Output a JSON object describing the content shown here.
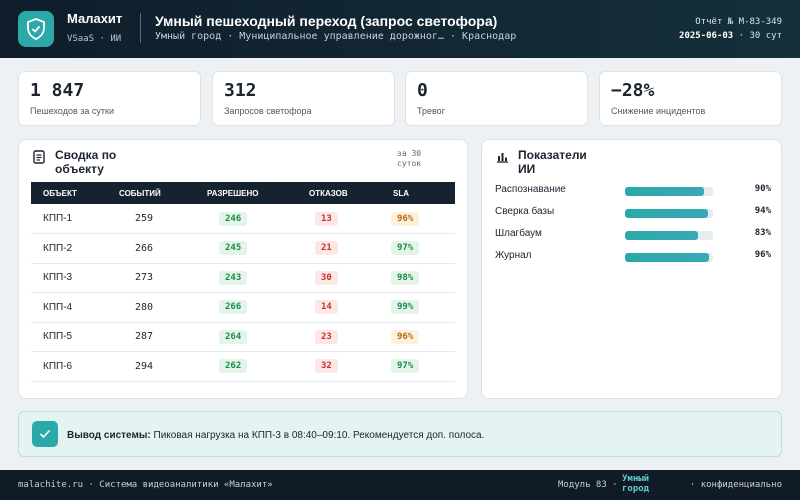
{
  "header": {
    "brand_name": "Малахит",
    "brand_sub": "VSaaS · ИИ",
    "title": "Умный пешеходный переход (запрос светофора)",
    "subtitle": "Умный город · Муниципальное управление дорожног… · Краснодар",
    "report_id": "Отчёт № M-83-349",
    "report_date": "2025-06-03",
    "report_period": "· 30 сут"
  },
  "kpis": [
    {
      "value": "1 847",
      "label": "Пешеходов за сутки"
    },
    {
      "value": "312",
      "label": "Запросов светофора"
    },
    {
      "value": "0",
      "label": "Тревог"
    },
    {
      "value": "−28%",
      "label": "Снижение инцидентов"
    }
  ],
  "summary": {
    "title": "Сводка по объекту",
    "period": "за 30 суток",
    "columns": [
      "ОБЪЕКТ",
      "СОБЫТИЙ",
      "РАЗРЕШЕНО",
      "ОТКАЗОВ",
      "SLA"
    ],
    "rows": [
      {
        "object": "КПП-1",
        "events": "259",
        "allowed": "246",
        "denied": "13",
        "sla": "96%",
        "sla_status": "amber"
      },
      {
        "object": "КПП-2",
        "events": "266",
        "allowed": "245",
        "denied": "21",
        "sla": "97%",
        "sla_status": "green"
      },
      {
        "object": "КПП-3",
        "events": "273",
        "allowed": "243",
        "denied": "30",
        "sla": "98%",
        "sla_status": "green"
      },
      {
        "object": "КПП-4",
        "events": "280",
        "allowed": "266",
        "denied": "14",
        "sla": "99%",
        "sla_status": "green"
      },
      {
        "object": "КПП-5",
        "events": "287",
        "allowed": "264",
        "denied": "23",
        "sla": "96%",
        "sla_status": "amber"
      },
      {
        "object": "КПП-6",
        "events": "294",
        "allowed": "262",
        "denied": "32",
        "sla": "97%",
        "sla_status": "green"
      }
    ]
  },
  "ai": {
    "title": "Показатели ИИ",
    "metrics": [
      {
        "name": "Распознавание",
        "value": 90,
        "label": "90%"
      },
      {
        "name": "Сверка базы",
        "value": 94,
        "label": "94%"
      },
      {
        "name": "Шлагбаум",
        "value": 83,
        "label": "83%"
      },
      {
        "name": "Журнал",
        "value": 96,
        "label": "96%"
      }
    ]
  },
  "conclusion": {
    "heading": "Вывод системы:",
    "text": "Пиковая нагрузка на КПП-3 в 08:40–09:10. Рекомендуется доп. полоса."
  },
  "footer": {
    "left": "malachite.ru · Система видеоаналитики «Малахит»",
    "module": "Модуль 83 ·",
    "tag": "Умный город",
    "right": "· конфиденциально"
  },
  "colors": {
    "accent": "#2aa9a8",
    "header_bg": "#0f1d2b",
    "ok": "#1d8b48",
    "bad": "#c8342c",
    "warn": "#b66a10"
  },
  "icons": {
    "logo": "shield-check-icon",
    "summary": "document-icon",
    "ai": "bar-chart-icon",
    "conclusion": "checkmark-icon"
  }
}
